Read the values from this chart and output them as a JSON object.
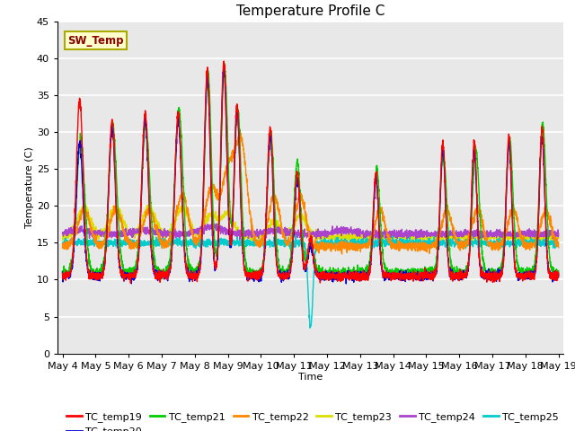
{
  "title": "Temperature Profile C",
  "xlabel": "Time",
  "ylabel": "Temperature (C)",
  "ylim": [
    0,
    45
  ],
  "xlim_days": [
    3.85,
    19.15
  ],
  "background_color": "#e8e8e8",
  "grid_color": "white",
  "annotation_text": "SW_Temp",
  "annotation_color": "#8B0000",
  "annotation_bg": "#ffffcc",
  "annotation_border": "#aaaa00",
  "series_colors": {
    "TC_temp19": "#ff0000",
    "TC_temp20": "#0000dd",
    "TC_temp21": "#00cc00",
    "TC_temp22": "#ff8800",
    "TC_temp23": "#dddd00",
    "TC_temp24": "#aa44cc",
    "TC_temp25": "#00cccc"
  },
  "tick_labels": [
    "May 4",
    "May 5",
    "May 6",
    "May 7",
    "May 8",
    "May 9",
    "May 10",
    "May 11",
    "May 12",
    "May 13",
    "May 14",
    "May 15",
    "May 16",
    "May 17",
    "May 18",
    "May 19"
  ],
  "tick_positions": [
    4,
    5,
    6,
    7,
    8,
    9,
    10,
    11,
    12,
    13,
    14,
    15,
    16,
    17,
    18,
    19
  ],
  "yticks": [
    0,
    5,
    10,
    15,
    20,
    25,
    30,
    35,
    40,
    45
  ],
  "figsize": [
    6.4,
    4.8
  ],
  "dpi": 100
}
